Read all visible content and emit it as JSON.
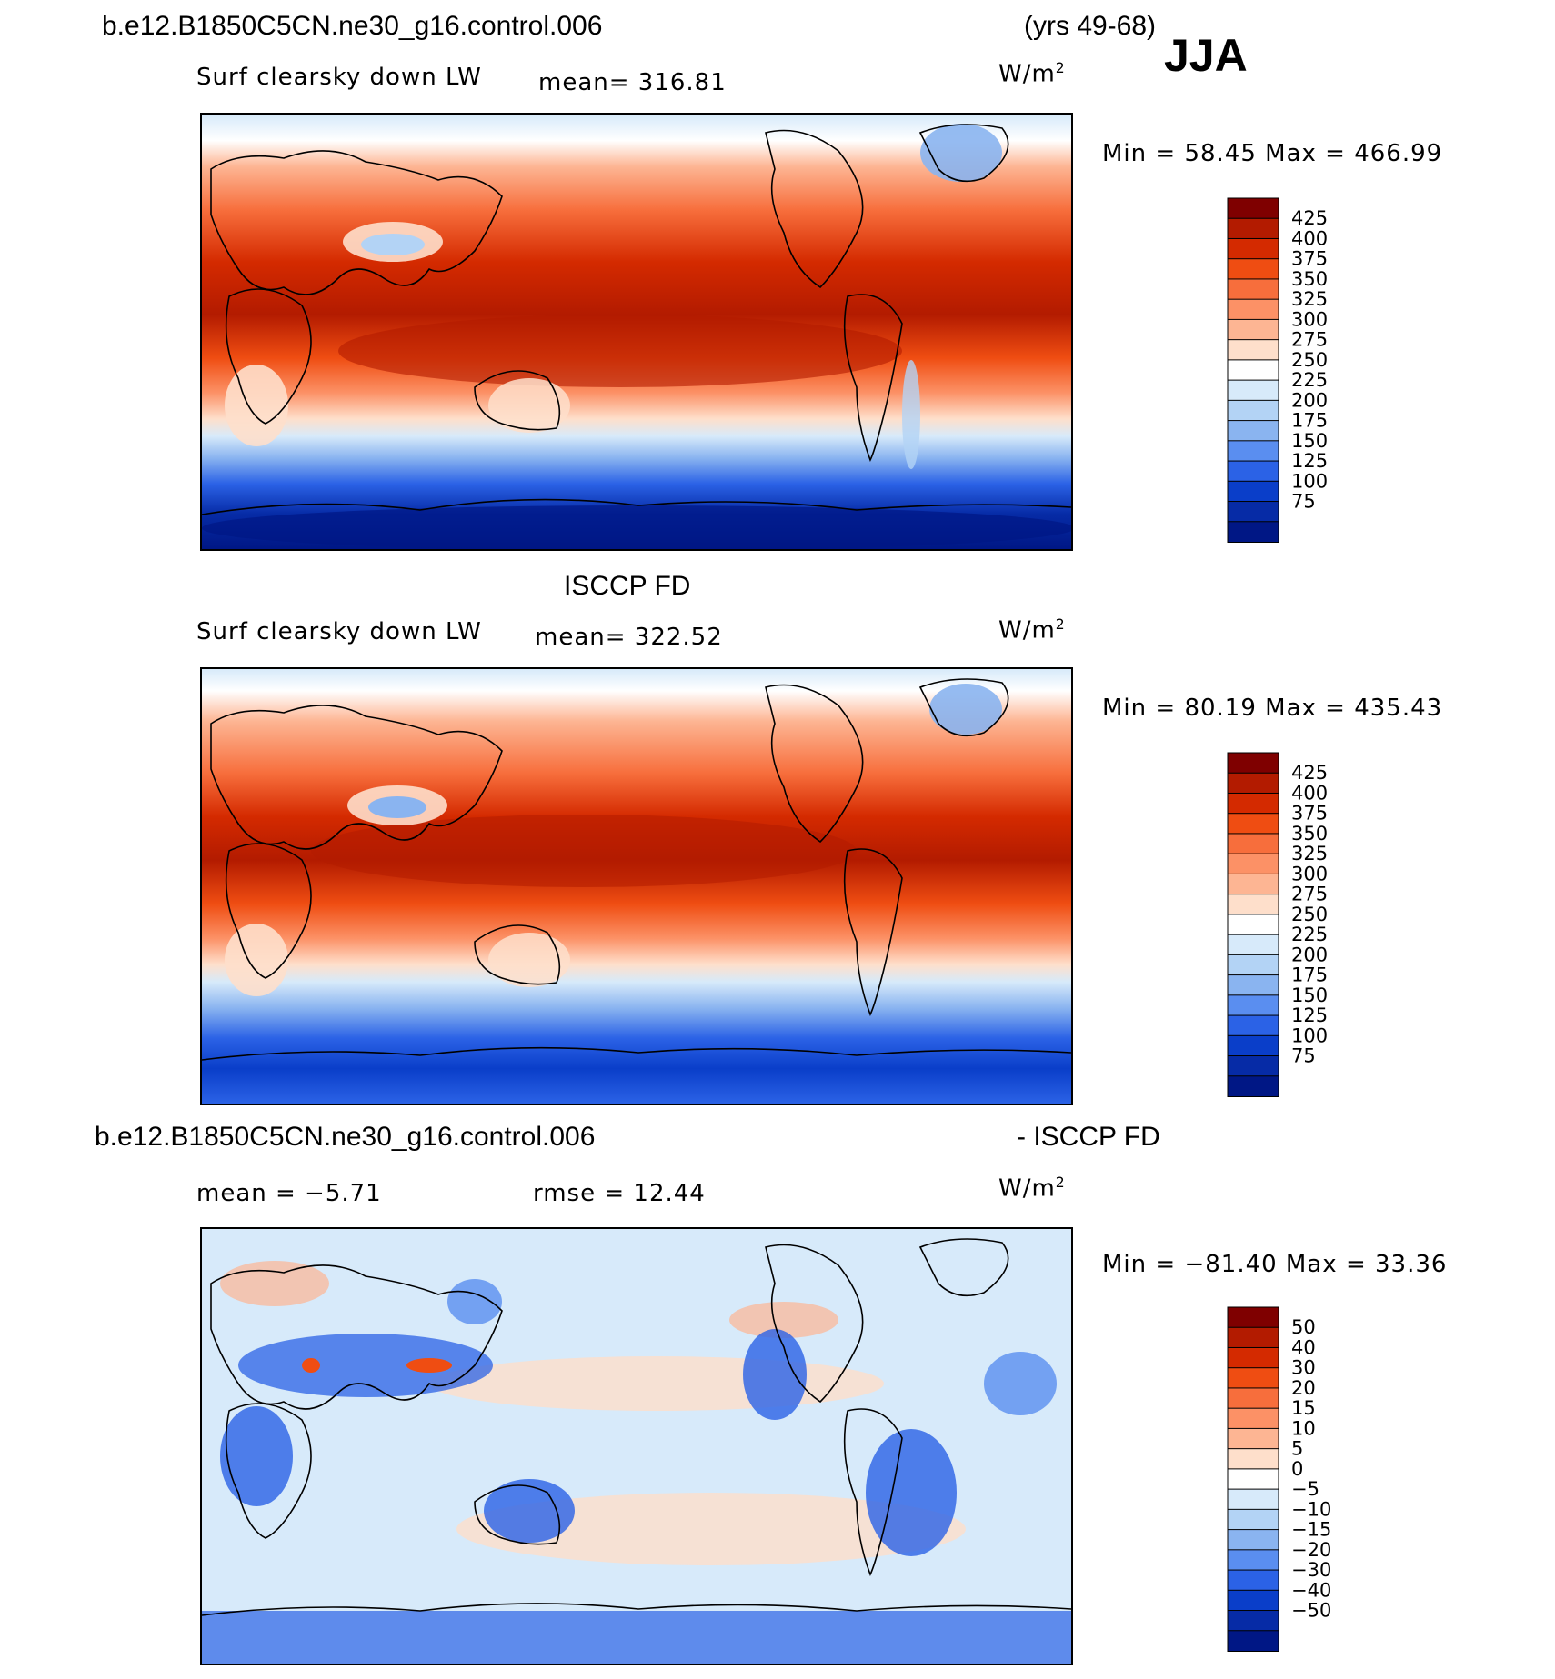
{
  "header": {
    "case_name": "b.e12.B1850C5CN.ne30_g16.control.006",
    "years": "(yrs 49-68)",
    "season": "JJA"
  },
  "panels": [
    {
      "id": "model",
      "variable": "Surf clearsky down LW",
      "mean": "mean=  316.81",
      "units": "W/m",
      "units_sup": "2",
      "minmax": "Min =   58.45 Max = 466.99"
    },
    {
      "id": "obs",
      "title": "ISCCP FD",
      "variable": "Surf clearsky down LW",
      "mean": "mean=  322.52",
      "units": "W/m",
      "units_sup": "2",
      "minmax": "Min =   80.19 Max = 435.43"
    },
    {
      "id": "diff",
      "title_left": "b.e12.B1850C5CN.ne30_g16.control.006",
      "title_right": "- ISCCP FD",
      "mean": "mean =  −5.71",
      "rmse": "rmse =   12.44",
      "units": "W/m",
      "units_sup": "2",
      "minmax": "Min = −81.40 Max =   33.36"
    }
  ],
  "chart_data": [
    {
      "type": "heatmap",
      "title": "Surf clearsky down LW",
      "colorbar_levels": [
        "425",
        "400",
        "375",
        "350",
        "325",
        "300",
        "275",
        "250",
        "225",
        "200",
        "175",
        "150",
        "125",
        "100",
        "75"
      ],
      "colorbar_colors": [
        "#7f0000",
        "#b31b00",
        "#d42a00",
        "#ef4d12",
        "#f76e3c",
        "#fc9166",
        "#fdb593",
        "#fedfcb",
        "#ffffff",
        "#d7eafa",
        "#b3d3f5",
        "#8ab4f0",
        "#5a8ef0",
        "#2b62e6",
        "#0a3ec9",
        "#062ba6",
        "#001785"
      ],
      "mean": 316.81,
      "min": 58.45,
      "max": 466.99,
      "units": "W/m2"
    },
    {
      "type": "heatmap",
      "title": "Surf clearsky down LW",
      "colorbar_levels": [
        "425",
        "400",
        "375",
        "350",
        "325",
        "300",
        "275",
        "250",
        "225",
        "200",
        "175",
        "150",
        "125",
        "100",
        "75"
      ],
      "colorbar_colors": [
        "#7f0000",
        "#b31b00",
        "#d42a00",
        "#ef4d12",
        "#f76e3c",
        "#fc9166",
        "#fdb593",
        "#fedfcb",
        "#ffffff",
        "#d7eafa",
        "#b3d3f5",
        "#8ab4f0",
        "#5a8ef0",
        "#2b62e6",
        "#0a3ec9",
        "#062ba6",
        "#001785"
      ],
      "mean": 322.52,
      "min": 80.19,
      "max": 435.43,
      "units": "W/m2"
    },
    {
      "type": "heatmap",
      "title": "- ISCCP FD",
      "colorbar_levels": [
        "50",
        "40",
        "30",
        "20",
        "15",
        "10",
        "5",
        "0",
        "−5",
        "−10",
        "−15",
        "−20",
        "−30",
        "−40",
        "−50"
      ],
      "colorbar_colors": [
        "#7f0000",
        "#b31b00",
        "#d42a00",
        "#ef4d12",
        "#f76e3c",
        "#fc9166",
        "#fdb593",
        "#fedfcb",
        "#ffffff",
        "#d7eafa",
        "#b3d3f5",
        "#8ab4f0",
        "#5a8ef0",
        "#2b62e6",
        "#0a3ec9",
        "#062ba6",
        "#001785"
      ],
      "mean": -5.71,
      "rmse": 12.44,
      "min": -81.4,
      "max": 33.36,
      "units": "W/m2"
    }
  ]
}
